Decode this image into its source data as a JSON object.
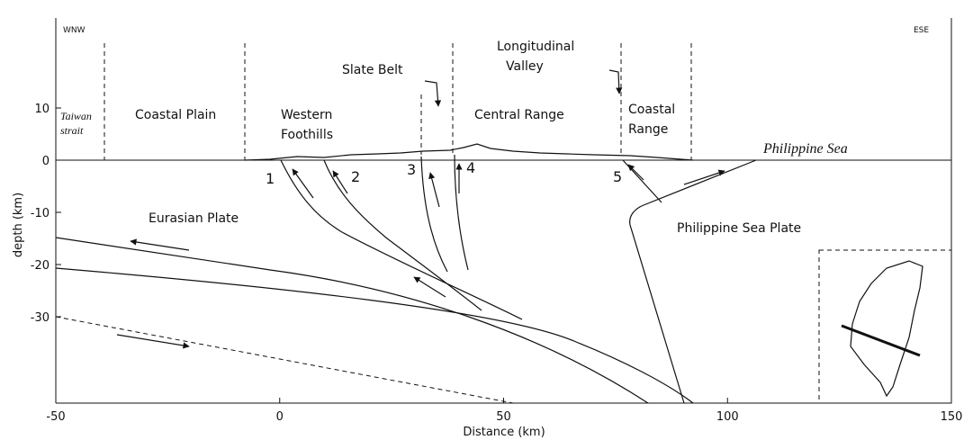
{
  "header": {
    "left": "WNW",
    "right": "ESE"
  },
  "labels": {
    "taiwan_strait": [
      "Taiwan",
      "strait"
    ],
    "coastal_plain": "Coastal Plain",
    "western_foothills": [
      "Western",
      "Foothills"
    ],
    "slate_belt": "Slate Belt",
    "longitudinal_valley": [
      "Longitudinal",
      "Valley"
    ],
    "central_range": "Central Range",
    "coastal_range": [
      "Coastal",
      "Range"
    ],
    "philippine_sea": "Philippine Sea",
    "eurasian_plate": "Eurasian Plate",
    "philippine_sea_plate": "Philippine Sea Plate"
  },
  "faults": [
    "1",
    "2",
    "3",
    "4",
    "5"
  ],
  "x_axis": {
    "label": "Distance (km)",
    "ticks": [
      -50,
      0,
      50,
      100,
      150
    ]
  },
  "y_axis": {
    "label": "depth (km)",
    "ticks": [
      10,
      0,
      -10,
      -20,
      -30
    ]
  }
}
